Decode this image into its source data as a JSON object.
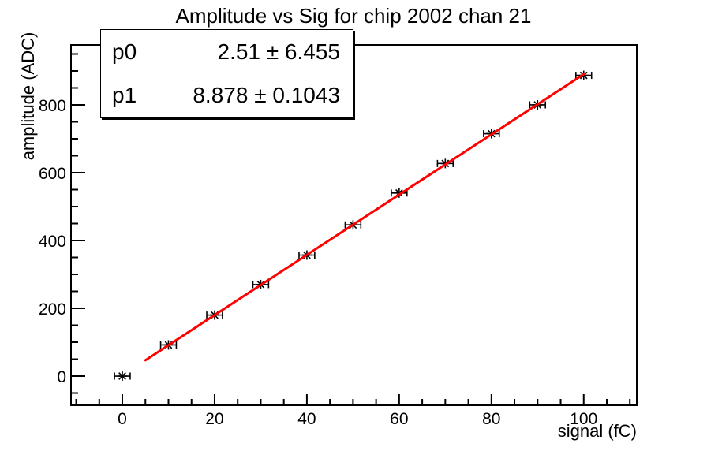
{
  "title": "Amplitude vs Sig for chip 2002 chan 21",
  "stats_box": {
    "rows": [
      {
        "label": "p0",
        "value": "2.51 ± 6.455"
      },
      {
        "label": "p1",
        "value": "8.878 ± 0.1043"
      }
    ]
  },
  "chart_data": {
    "type": "scatter",
    "title": "Amplitude vs Sig for chip 2002 chan 21",
    "xlabel": "signal (fC)",
    "ylabel": "amplitude (ADC)",
    "x": [
      0,
      10,
      20,
      30,
      40,
      50,
      60,
      70,
      80,
      90,
      100
    ],
    "y": [
      0,
      92,
      180,
      270,
      357,
      446,
      540,
      627,
      715,
      800,
      887
    ],
    "xerr": 1.7,
    "marker": "asterisk",
    "marker_color": "#000000",
    "grid": false,
    "legend": false,
    "xlim": [
      -11.12,
      111.5
    ],
    "ylim": [
      -86,
      976.7
    ],
    "x_major_ticks": [
      0,
      20,
      40,
      60,
      80,
      100
    ],
    "y_major_ticks": [
      0,
      200,
      400,
      600,
      800
    ],
    "x_minor_step": 5,
    "y_minor_step": 50,
    "fit": {
      "type": "pol1",
      "p0": 2.51,
      "p0_err": 6.455,
      "p1": 8.878,
      "p1_err": 0.1043,
      "range": [
        5,
        100
      ],
      "color": "#ff0000",
      "line_width": 3
    }
  }
}
